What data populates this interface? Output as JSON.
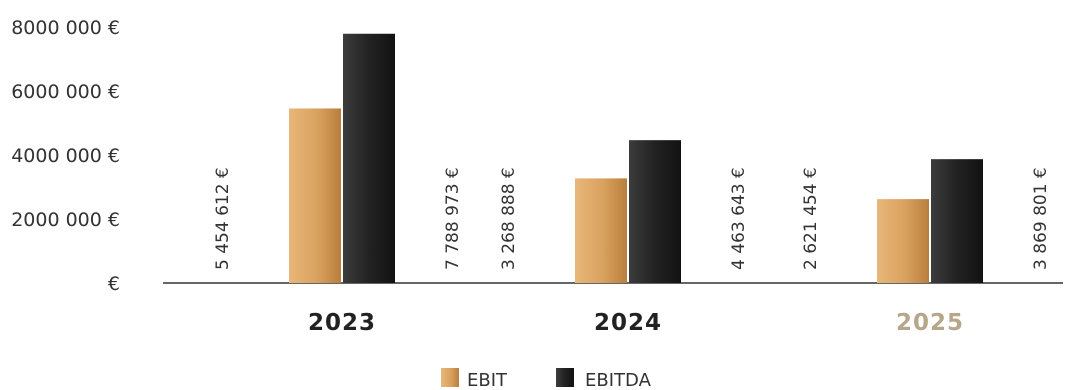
{
  "chart_data": {
    "type": "bar",
    "categories": [
      "2023",
      "2024",
      "2025"
    ],
    "series": [
      {
        "name": "EBIT",
        "values": [
          5454612,
          3268888,
          2621454
        ]
      },
      {
        "name": "EBITDA",
        "values": [
          7788973,
          4463643,
          3869801
        ]
      }
    ],
    "value_labels": [
      [
        "5 454 612 €",
        "3 268 888 €",
        "2 621 454 €"
      ],
      [
        "7 788 973 €",
        "4 463 643 €",
        "3 869 801 €"
      ]
    ],
    "yticks": [
      0,
      2000000,
      4000000,
      6000000,
      8000000
    ],
    "ytick_labels": [
      "€",
      "2000 000 €",
      "4000 000 €",
      "6000 000 €",
      "8000 000 €"
    ],
    "ylim": [
      0,
      8000000
    ],
    "grid": false,
    "legend_position": "bottom-center",
    "colors": {
      "EBIT": "#d9a15e",
      "EBITDA": "#2a2a2a",
      "category_label": "#222222",
      "category_label_muted": "#b8a68a"
    }
  }
}
